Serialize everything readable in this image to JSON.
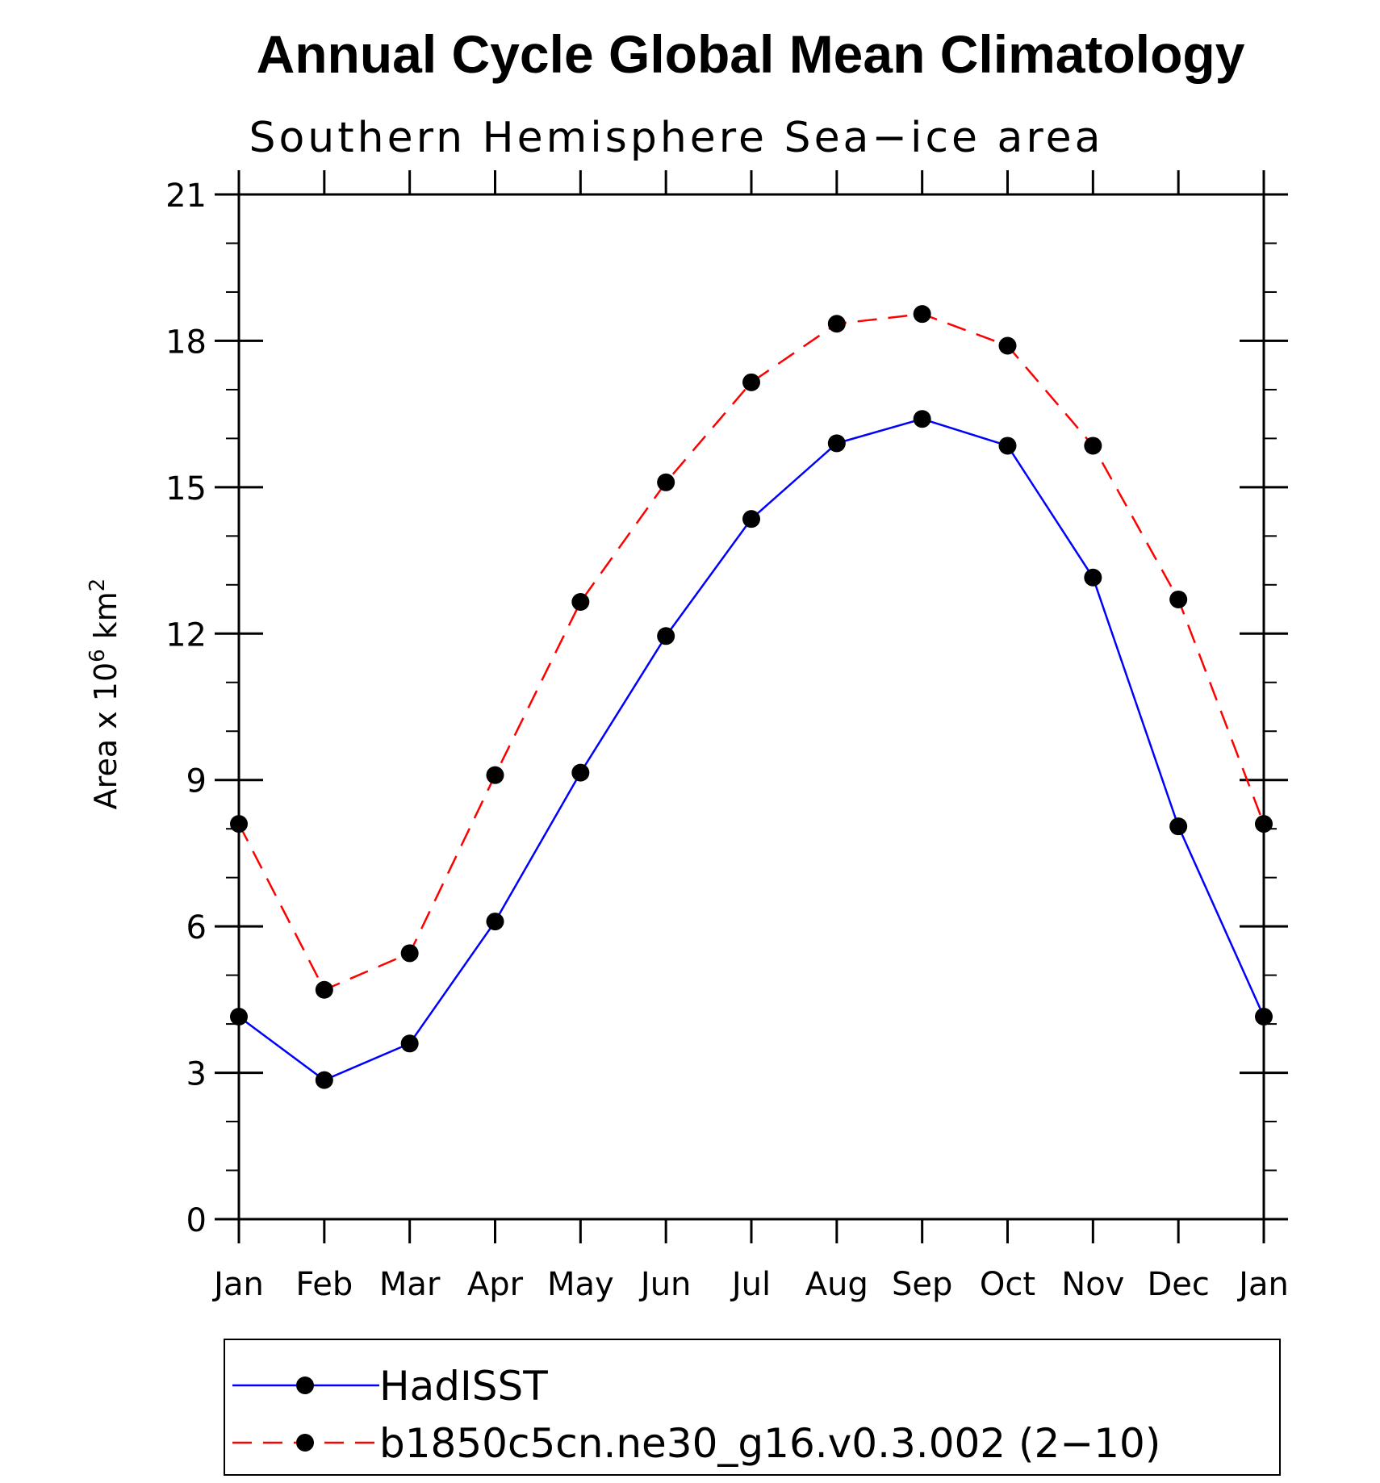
{
  "chart_data": {
    "type": "line",
    "title": "Annual Cycle Global Mean Climatology",
    "subtitle": "Southern Hemisphere Sea−ice area",
    "ylabel_prefix": "Area x 10",
    "ylabel_exp1": "6",
    "ylabel_unit": " km",
    "ylabel_exp2": "2",
    "categories": [
      "Jan",
      "Feb",
      "Mar",
      "Apr",
      "May",
      "Jun",
      "Jul",
      "Aug",
      "Sep",
      "Oct",
      "Nov",
      "Dec",
      "Jan"
    ],
    "ylim": [
      0,
      21
    ],
    "yticks": [
      0,
      3,
      6,
      9,
      12,
      15,
      18,
      21
    ],
    "series": [
      {
        "name": "HadISST",
        "color": "#0000ff",
        "dash": "solid",
        "values": [
          4.15,
          2.85,
          3.6,
          6.1,
          9.15,
          11.95,
          14.35,
          15.9,
          16.4,
          15.85,
          13.15,
          8.05,
          4.15
        ]
      },
      {
        "name": "b1850c5cn.ne30_g16.v0.3.002 (2−10)",
        "color": "#ff0000",
        "dash": "dashed",
        "values": [
          8.1,
          4.7,
          5.45,
          9.1,
          12.65,
          15.1,
          17.15,
          18.35,
          18.55,
          17.9,
          15.85,
          12.7,
          8.1
        ]
      }
    ]
  }
}
